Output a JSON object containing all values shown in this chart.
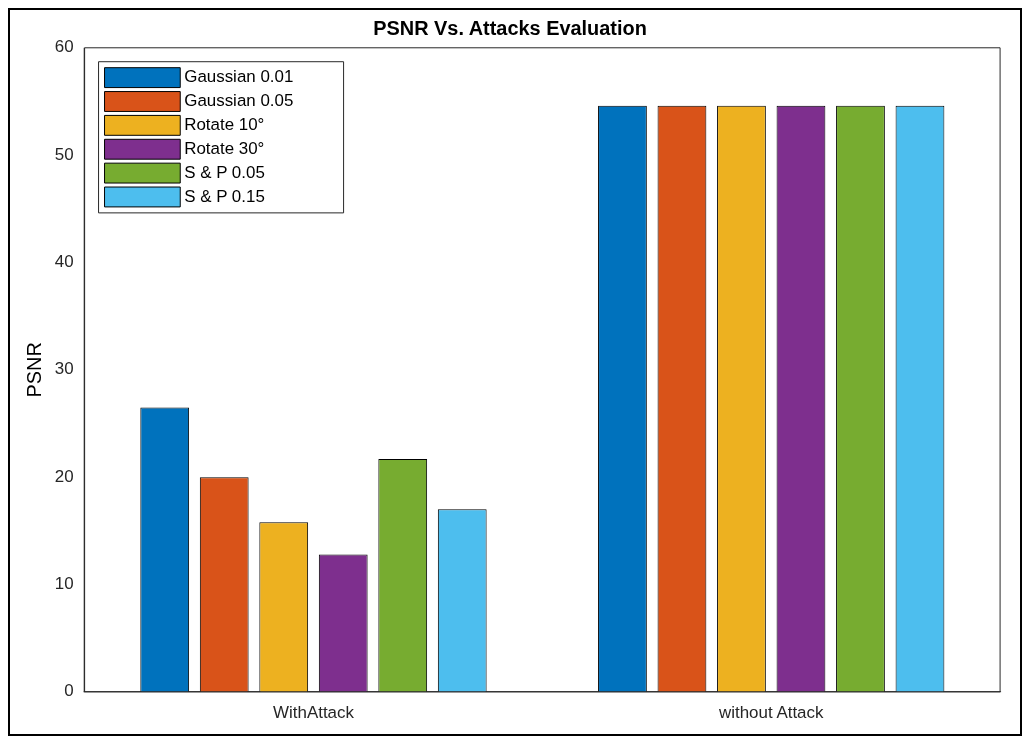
{
  "chart_data": {
    "type": "bar",
    "title": "PSNR Vs. Attacks Evaluation",
    "ylabel": "PSNR",
    "categories": [
      "WithAttack",
      "without Attack"
    ],
    "series": [
      {
        "name": "Gaussian 0.01",
        "color": "#0072bd",
        "values": [
          26.5,
          54.6
        ]
      },
      {
        "name": "Gaussian 0.05",
        "color": "#d95319",
        "values": [
          20.0,
          54.6
        ]
      },
      {
        "name": "Rotate 10°",
        "color": "#edb120",
        "values": [
          15.8,
          54.6
        ]
      },
      {
        "name": "Rotate 30°",
        "color": "#7e2f8e",
        "values": [
          12.8,
          54.6
        ]
      },
      {
        "name": "S & P 0.05",
        "color": "#77ac30",
        "values": [
          21.7,
          54.6
        ]
      },
      {
        "name": "S & P 0.15",
        "color": "#4dbeee",
        "values": [
          17.0,
          54.6
        ]
      }
    ],
    "ylim": [
      0,
      60
    ],
    "yticks": [
      0,
      10,
      20,
      30,
      40,
      50,
      60
    ],
    "grid": false,
    "legend": "top left"
  }
}
